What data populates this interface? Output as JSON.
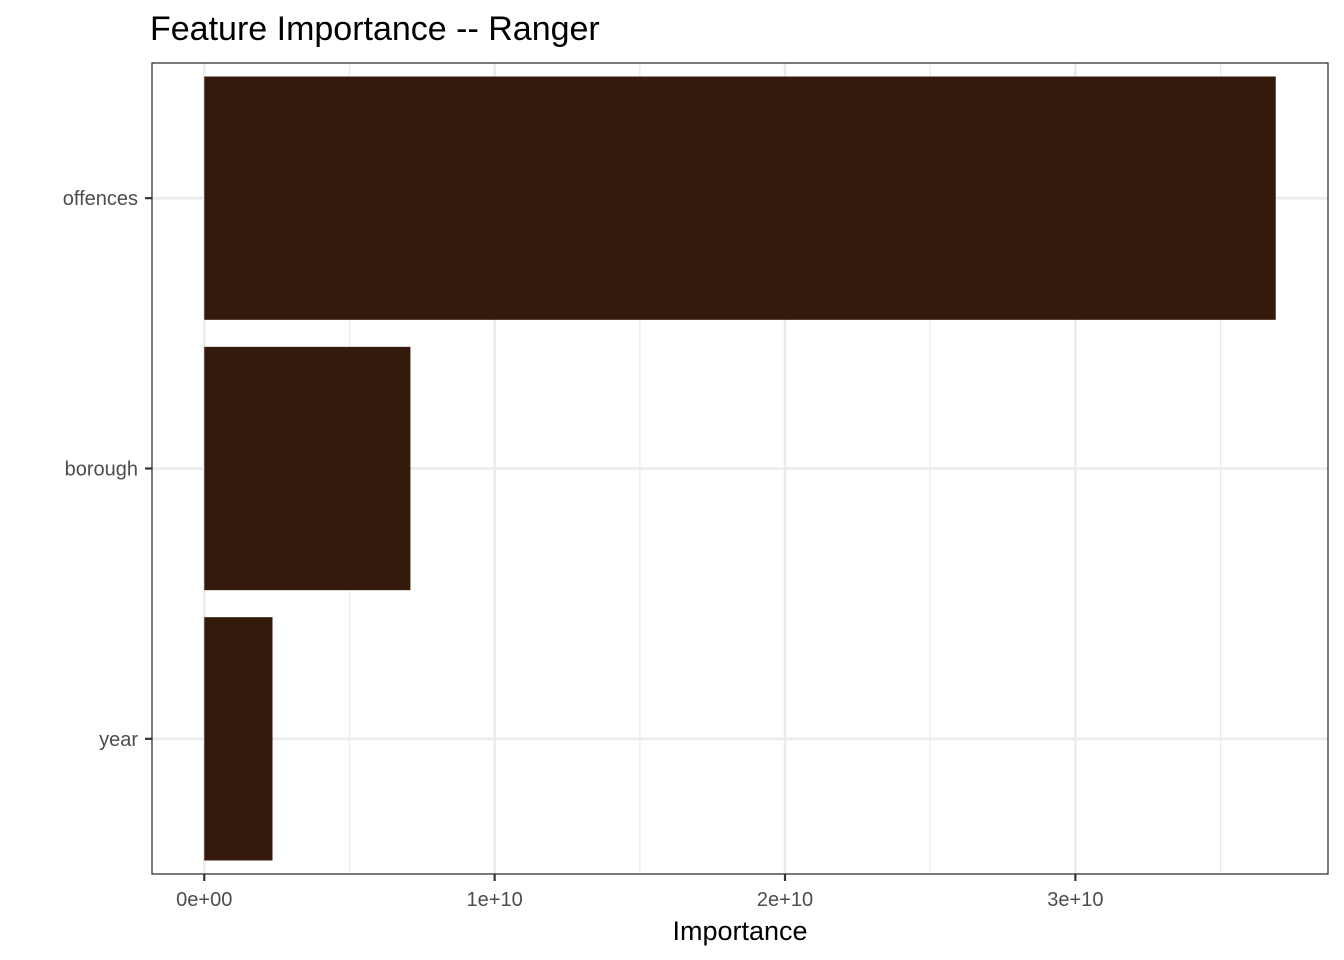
{
  "chart_data": {
    "type": "bar",
    "orientation": "horizontal",
    "title": "Feature Importance -- Ranger",
    "xlabel": "Importance",
    "ylabel": "",
    "categories": [
      "offences",
      "borough",
      "year"
    ],
    "values": [
      36900000000,
      7100000000,
      2350000000
    ],
    "xlim": [
      -1800000000,
      38700000000
    ],
    "x_ticks": [
      {
        "value": 0,
        "label": "0e+00"
      },
      {
        "value": 10000000000,
        "label": "1e+10"
      },
      {
        "value": 20000000000,
        "label": "2e+10"
      },
      {
        "value": 30000000000,
        "label": "3e+10"
      }
    ],
    "x_minor_ticks": [
      5000000000,
      15000000000,
      25000000000,
      35000000000
    ],
    "bar_color": "#341a0b",
    "grid_color": "#ebebeb",
    "panel_border_color": "#333333",
    "grid": true,
    "legend": "none"
  }
}
